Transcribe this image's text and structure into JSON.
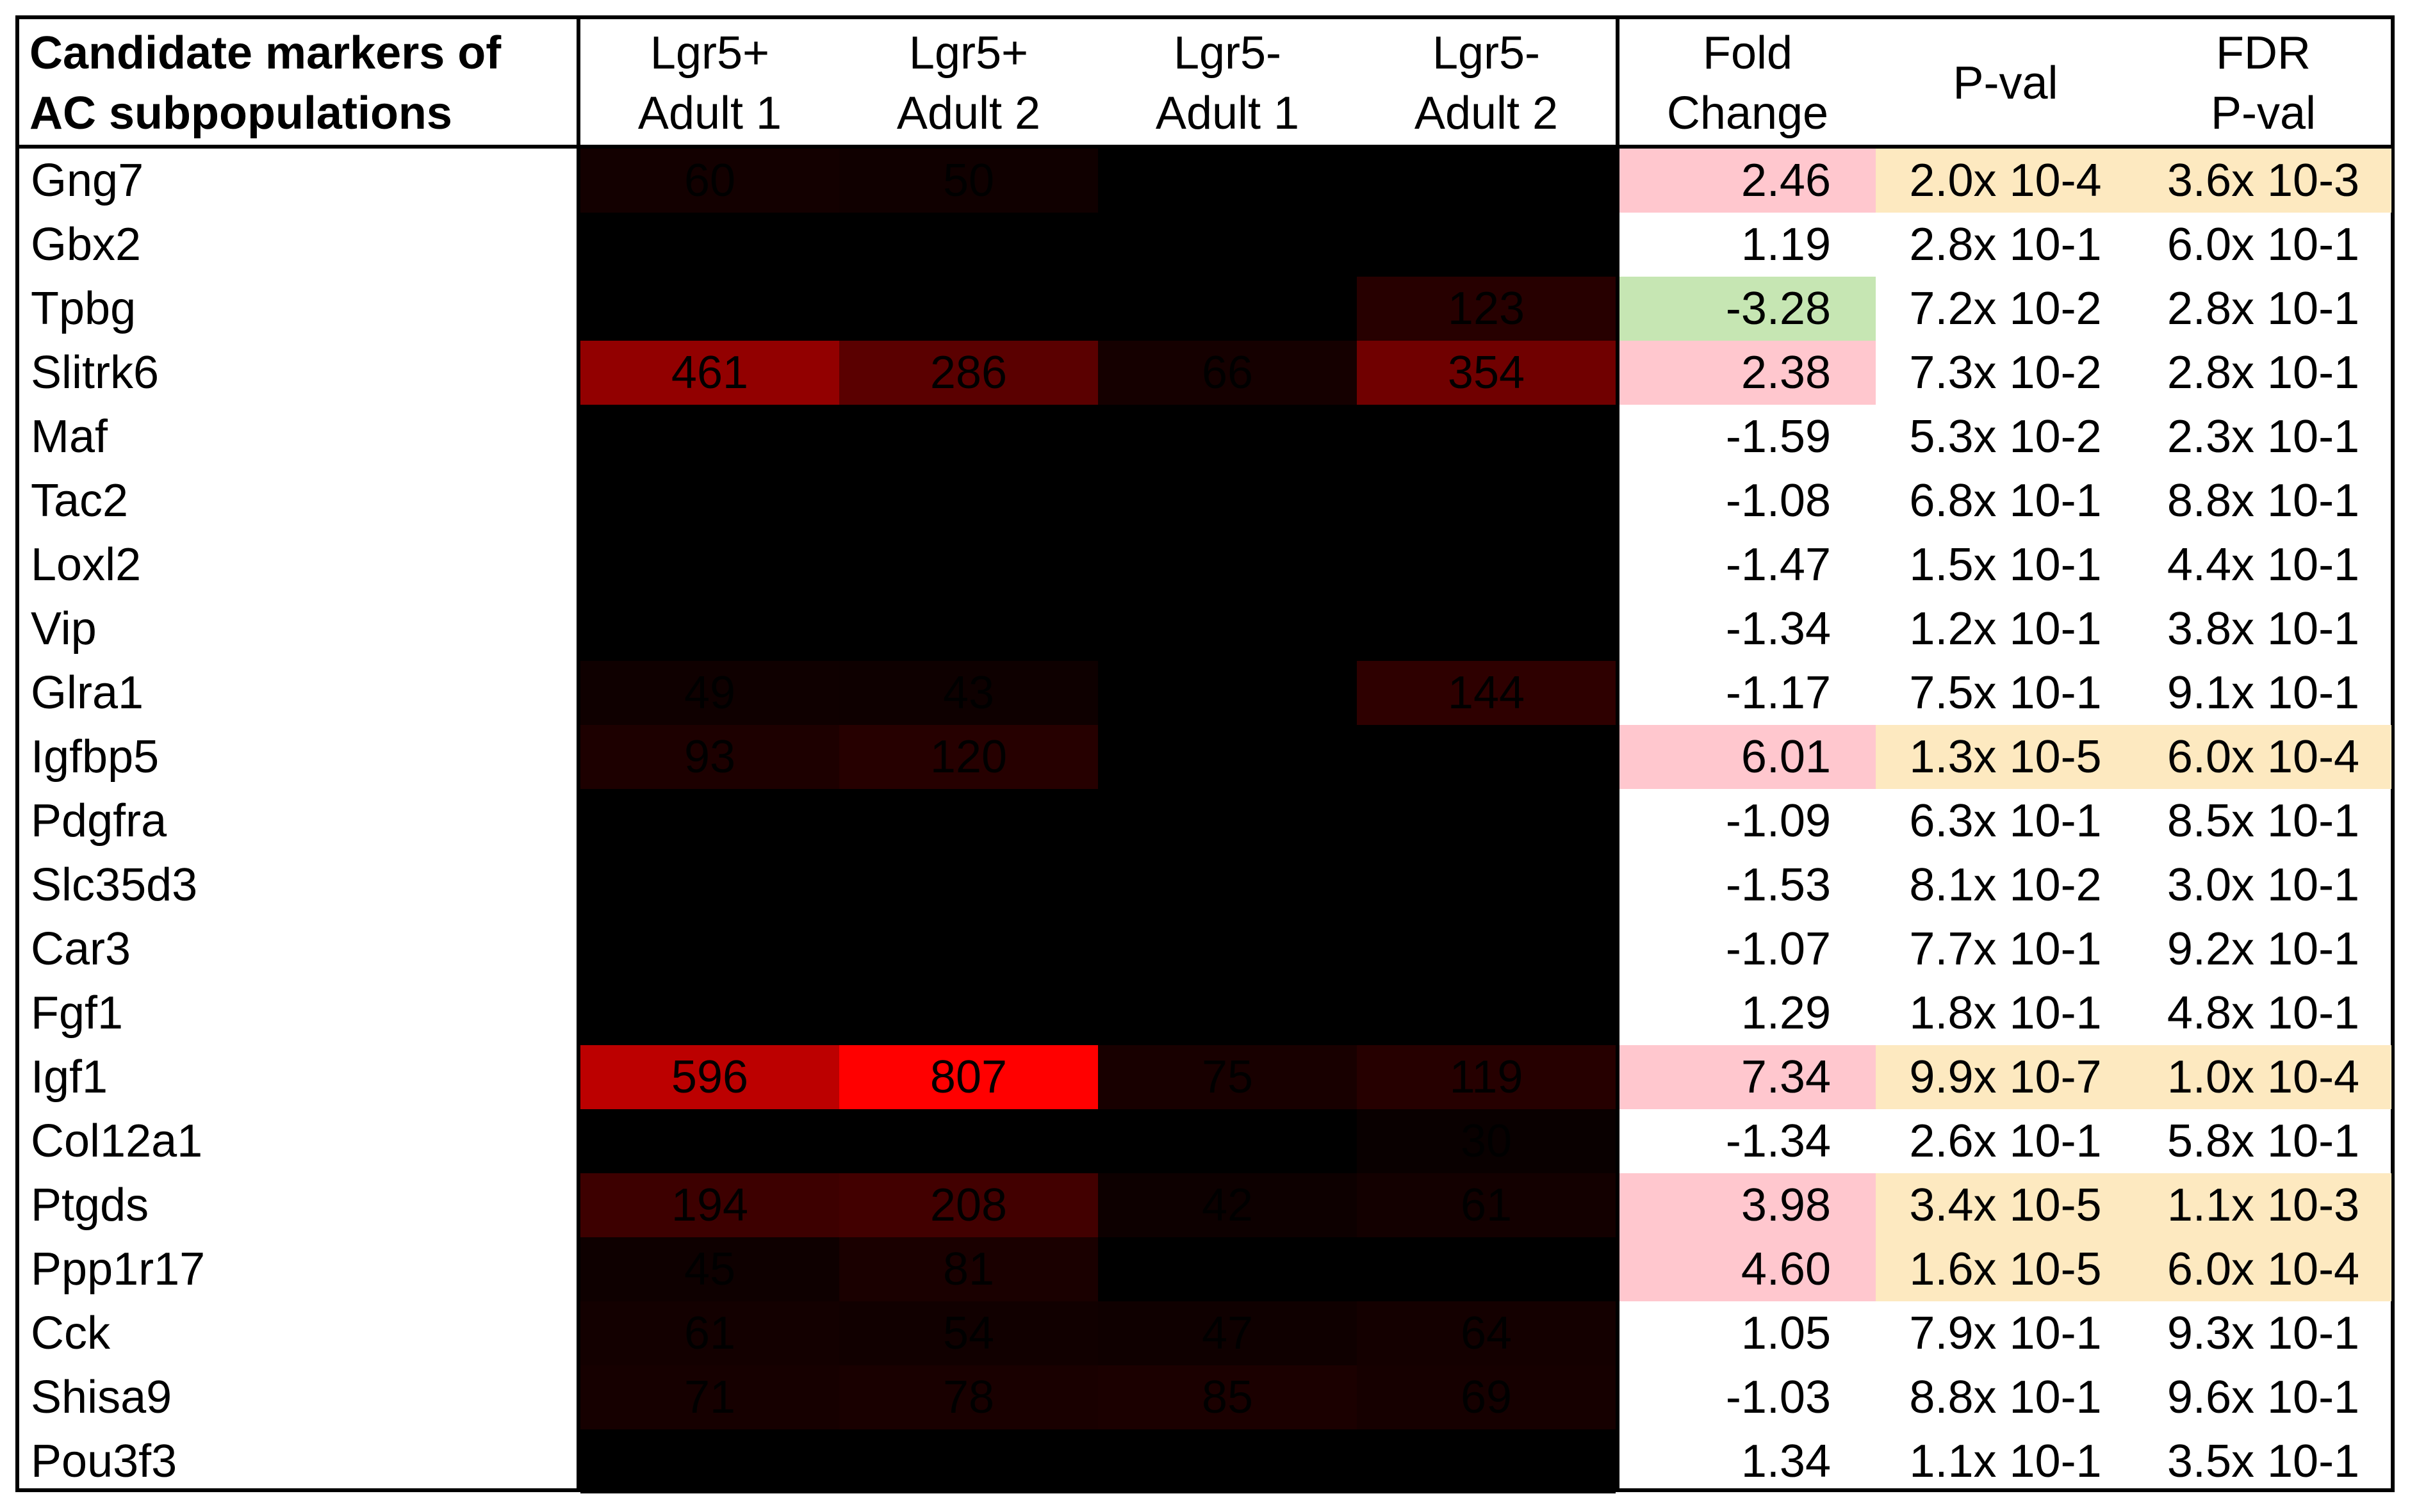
{
  "header": {
    "gene_line1": "Candidate markers of",
    "gene_line2": "AC subpopulations",
    "col1_line1": "Lgr5+",
    "col1_line2": "Adult  1",
    "col2_line1": "Lgr5+",
    "col2_line2": "Adult  2",
    "col3_line1": "Lgr5-",
    "col3_line2": "Adult  1",
    "col4_line1": "Lgr5-",
    "col4_line2": "Adult  2",
    "fc_line1": "Fold",
    "fc_line2": "Change",
    "pval": "P-val",
    "fdr_line1": "FDR",
    "fdr_line2": "P-val"
  },
  "colors": {
    "heat_max": "#ff0000",
    "heat_min": "#000000",
    "fc_up": "#ffc7ce",
    "fc_down": "#c6e6b3",
    "pval_sig": "#fde9c0"
  },
  "chart_data": {
    "type": "heatmap",
    "columns": [
      "Lgr5+ Adult  1",
      "Lgr5+ Adult  2",
      "Lgr5- Adult  1",
      "Lgr5- Adult  2"
    ],
    "heat_max_value": 807,
    "rows": [
      {
        "gene": "Gng7",
        "values": [
          60,
          50,
          0,
          0
        ],
        "fc": "2.46",
        "pval": "2.0x 10-4",
        "fdr": "3.6x 10-3",
        "fc_dir": "up",
        "sig": true
      },
      {
        "gene": "Gbx2",
        "values": [
          0,
          0,
          0,
          0
        ],
        "fc": "1.19",
        "pval": "2.8x 10-1",
        "fdr": "6.0x 10-1",
        "fc_dir": "none",
        "sig": false
      },
      {
        "gene": "Tpbg",
        "values": [
          0,
          0,
          0,
          123
        ],
        "fc": "-3.28",
        "pval": "7.2x 10-2",
        "fdr": "2.8x 10-1",
        "fc_dir": "down",
        "sig": false
      },
      {
        "gene": "Slitrk6",
        "values": [
          461,
          286,
          66,
          354
        ],
        "fc": "2.38",
        "pval": "7.3x 10-2",
        "fdr": "2.8x 10-1",
        "fc_dir": "up",
        "sig": false
      },
      {
        "gene": "Maf",
        "values": [
          0,
          0,
          0,
          0
        ],
        "fc": "-1.59",
        "pval": "5.3x 10-2",
        "fdr": "2.3x 10-1",
        "fc_dir": "none",
        "sig": false
      },
      {
        "gene": "Tac2",
        "values": [
          0,
          0,
          0,
          0
        ],
        "fc": "-1.08",
        "pval": "6.8x 10-1",
        "fdr": "8.8x 10-1",
        "fc_dir": "none",
        "sig": false
      },
      {
        "gene": "Loxl2",
        "values": [
          0,
          0,
          0,
          0
        ],
        "fc": "-1.47",
        "pval": "1.5x 10-1",
        "fdr": "4.4x 10-1",
        "fc_dir": "none",
        "sig": false
      },
      {
        "gene": "Vip",
        "values": [
          0,
          0,
          0,
          0
        ],
        "fc": "-1.34",
        "pval": "1.2x 10-1",
        "fdr": "3.8x 10-1",
        "fc_dir": "none",
        "sig": false
      },
      {
        "gene": "Glra1",
        "values": [
          49,
          43,
          0,
          144
        ],
        "fc": "-1.17",
        "pval": "7.5x 10-1",
        "fdr": "9.1x 10-1",
        "fc_dir": "none",
        "sig": false
      },
      {
        "gene": "Igfbp5",
        "values": [
          93,
          120,
          0,
          0
        ],
        "fc": "6.01",
        "pval": "1.3x 10-5",
        "fdr": "6.0x 10-4",
        "fc_dir": "up",
        "sig": true
      },
      {
        "gene": "Pdgfra",
        "values": [
          0,
          0,
          0,
          0
        ],
        "fc": "-1.09",
        "pval": "6.3x 10-1",
        "fdr": "8.5x 10-1",
        "fc_dir": "none",
        "sig": false
      },
      {
        "gene": "Slc35d3",
        "values": [
          0,
          0,
          0,
          0
        ],
        "fc": "-1.53",
        "pval": "8.1x 10-2",
        "fdr": "3.0x 10-1",
        "fc_dir": "none",
        "sig": false
      },
      {
        "gene": "Car3",
        "values": [
          0,
          0,
          0,
          0
        ],
        "fc": "-1.07",
        "pval": "7.7x 10-1",
        "fdr": "9.2x 10-1",
        "fc_dir": "none",
        "sig": false
      },
      {
        "gene": "Fgf1",
        "values": [
          0,
          0,
          0,
          0
        ],
        "fc": "1.29",
        "pval": "1.8x 10-1",
        "fdr": "4.8x 10-1",
        "fc_dir": "none",
        "sig": false
      },
      {
        "gene": "Igf1",
        "values": [
          596,
          807,
          75,
          119
        ],
        "fc": "7.34",
        "pval": "9.9x 10-7",
        "fdr": "1.0x 10-4",
        "fc_dir": "up",
        "sig": true
      },
      {
        "gene": "Col12a1",
        "values": [
          0,
          0,
          0,
          30
        ],
        "fc": "-1.34",
        "pval": "2.6x 10-1",
        "fdr": "5.8x 10-1",
        "fc_dir": "none",
        "sig": false
      },
      {
        "gene": "Ptgds",
        "values": [
          194,
          208,
          42,
          61
        ],
        "fc": "3.98",
        "pval": "3.4x 10-5",
        "fdr": "1.1x 10-3",
        "fc_dir": "up",
        "sig": true
      },
      {
        "gene": "Ppp1r17",
        "values": [
          45,
          81,
          0,
          0
        ],
        "fc": "4.60",
        "pval": "1.6x 10-5",
        "fdr": "6.0x 10-4",
        "fc_dir": "up",
        "sig": true
      },
      {
        "gene": "Cck",
        "values": [
          61,
          54,
          47,
          64
        ],
        "fc": "1.05",
        "pval": "7.9x 10-1",
        "fdr": "9.3x 10-1",
        "fc_dir": "none",
        "sig": false
      },
      {
        "gene": "Shisa9",
        "values": [
          71,
          78,
          85,
          69
        ],
        "fc": "-1.03",
        "pval": "8.8x 10-1",
        "fdr": "9.6x 10-1",
        "fc_dir": "none",
        "sig": false
      },
      {
        "gene": "Pou3f3",
        "values": [
          0,
          0,
          0,
          0
        ],
        "fc": "1.34",
        "pval": "1.1x 10-1",
        "fdr": "3.5x 10-1",
        "fc_dir": "none",
        "sig": false
      }
    ]
  }
}
